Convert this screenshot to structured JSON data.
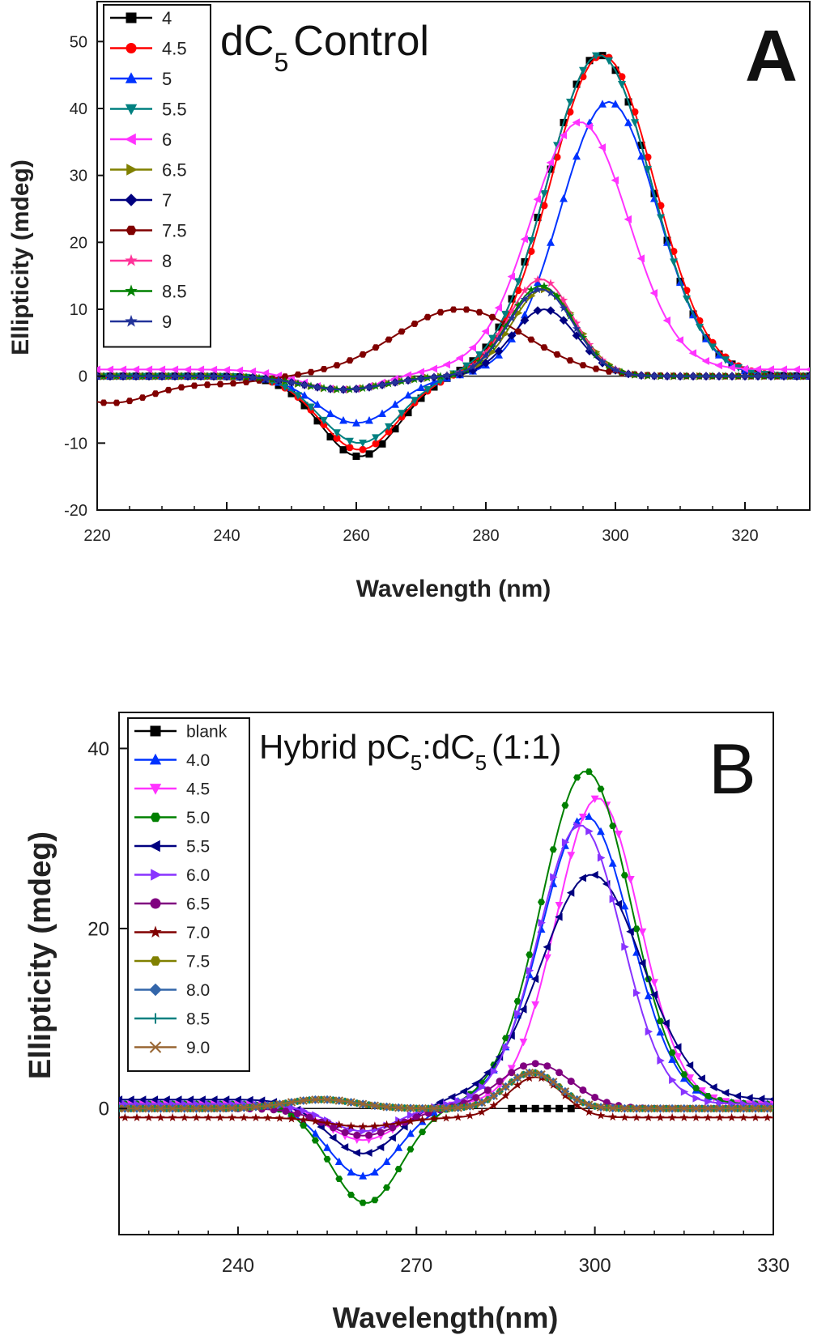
{
  "chart_data": [
    {
      "type": "line",
      "panel_label": "A",
      "title": "dC",
      "title_subscript": "5",
      "title_suffix": "Control",
      "xlabel": "Wavelength (nm)",
      "ylabel": "Ellipticity (mdeg)",
      "xlim": [
        220,
        330
      ],
      "ylim": [
        -20,
        55
      ],
      "x_ticks": [
        "220",
        "240",
        "260",
        "280",
        "300",
        "320"
      ],
      "x_tick_values": [
        220,
        240,
        260,
        280,
        300,
        320
      ],
      "y_ticks": [
        "-20",
        "-10",
        "0",
        "10",
        "20",
        "30",
        "40",
        "50"
      ],
      "y_tick_values": [
        -20,
        -10,
        0,
        10,
        20,
        30,
        40,
        50
      ],
      "legend_position": "top-left",
      "series": [
        {
          "name": "4",
          "color": "#000000",
          "marker": "square",
          "base": 0,
          "peaks": [
            [
              260.5,
              -12,
              6
            ],
            [
              297.5,
              48,
              8
            ]
          ]
        },
        {
          "name": "4.5",
          "color": "#ff0000",
          "marker": "circle",
          "base": 0,
          "peaks": [
            [
              260.5,
              -11,
              6
            ],
            [
              298,
              48,
              8
            ]
          ]
        },
        {
          "name": "5",
          "color": "#0033ff",
          "marker": "triangle-up",
          "base": 0,
          "peaks": [
            [
              260,
              -7,
              6
            ],
            [
              299,
              41,
              7.5
            ]
          ]
        },
        {
          "name": "5.5",
          "color": "#008080",
          "marker": "triangle-down",
          "base": 0,
          "peaks": [
            [
              260.5,
              -10,
              6
            ],
            [
              297.5,
              48,
              8
            ]
          ]
        },
        {
          "name": "6",
          "color": "#ff33ff",
          "marker": "triangle-left",
          "base": 1,
          "peaks": [
            [
              258,
              -3,
              6.5
            ],
            [
              294.5,
              37,
              7.5
            ]
          ]
        },
        {
          "name": "6.5",
          "color": "#808000",
          "marker": "triangle-right",
          "base": 0,
          "peaks": [
            [
              258,
              -2,
              6.5
            ],
            [
              289,
              13,
              5
            ]
          ]
        },
        {
          "name": "7",
          "color": "#000080",
          "marker": "diamond",
          "base": 0,
          "peaks": [
            [
              258,
              -2,
              6.5
            ],
            [
              289,
              10,
              5
            ]
          ]
        },
        {
          "name": "7.5",
          "color": "#800000",
          "marker": "hexagon",
          "base": 0,
          "peaks": [
            [
              276,
              10,
              10
            ],
            [
              222,
              -4,
              7
            ],
            [
              240,
              -1,
              6
            ]
          ]
        },
        {
          "name": "8",
          "color": "#ff3399",
          "marker": "star",
          "base": 0,
          "peaks": [
            [
              258,
              -2,
              6.5
            ],
            [
              288.5,
              14.5,
              5
            ]
          ]
        },
        {
          "name": "8.5",
          "color": "#008000",
          "marker": "star",
          "base": 0,
          "peaks": [
            [
              258,
              -2,
              6.5
            ],
            [
              288.5,
              13.5,
              5
            ]
          ]
        },
        {
          "name": "9",
          "color": "#223399",
          "marker": "star",
          "base": 0,
          "peaks": [
            [
              258,
              -2,
              6.5
            ],
            [
              288.5,
              13,
              5
            ]
          ]
        }
      ]
    },
    {
      "type": "line",
      "panel_label": "B",
      "title": "Hybrid pC",
      "title_sub1": "5",
      "title_mid": ":dC",
      "title_sub2": "5",
      "title_suffix": "(1:1)",
      "xlabel": "Wavelength(nm)",
      "ylabel": "Ellipticity (mdeg)",
      "xlim": [
        220,
        330
      ],
      "ylim": [
        -14,
        44
      ],
      "x_ticks": [
        "240",
        "270",
        "300",
        "330"
      ],
      "x_tick_values": [
        240,
        270,
        300,
        330
      ],
      "y_ticks": [
        "0",
        "20",
        "40"
      ],
      "y_tick_values": [
        0,
        20,
        40
      ],
      "legend_position": "top-left",
      "series": [
        {
          "name": "blank",
          "color": "#000000",
          "marker": "square",
          "base": 0,
          "peaks": []
        },
        {
          "name": "4.0",
          "color": "#0033ff",
          "marker": "triangle-up",
          "base": 0.5,
          "peaks": [
            [
              261,
              -8,
              6
            ],
            [
              298.5,
              32,
              7.5
            ]
          ]
        },
        {
          "name": "4.5",
          "color": "#ff33ff",
          "marker": "triangle-down",
          "base": 0.5,
          "peaks": [
            [
              261,
              -4,
              6
            ],
            [
              300.5,
              34,
              7
            ]
          ]
        },
        {
          "name": "5.0",
          "color": "#008000",
          "marker": "hexagon",
          "base": 0.5,
          "peaks": [
            [
              261.5,
              -11,
              6
            ],
            [
              298.5,
              37,
              7.5
            ]
          ]
        },
        {
          "name": "5.5",
          "color": "#000080",
          "marker": "triangle-left",
          "base": 1,
          "peaks": [
            [
              261,
              -6,
              6
            ],
            [
              299.5,
              25,
              8.5
            ]
          ]
        },
        {
          "name": "6.0",
          "color": "#8833ff",
          "marker": "triangle-right",
          "base": 0.5,
          "peaks": [
            [
              261,
              -3,
              6
            ],
            [
              297.5,
              31,
              7
            ]
          ]
        },
        {
          "name": "6.5",
          "color": "#800080",
          "marker": "circle",
          "base": 0,
          "peaks": [
            [
              261,
              -3,
              6
            ],
            [
              290,
              5,
              6
            ]
          ]
        },
        {
          "name": "7.0",
          "color": "#800000",
          "marker": "star",
          "base": -1,
          "peaks": [
            [
              261,
              -1,
              6
            ],
            [
              290,
              4.5,
              4.5
            ]
          ]
        },
        {
          "name": "7.5",
          "color": "#808000",
          "marker": "hexagon",
          "base": 0,
          "peaks": [
            [
              254,
              1,
              6
            ],
            [
              289.5,
              4,
              4.5
            ]
          ]
        },
        {
          "name": "8.0",
          "color": "#3366aa",
          "marker": "diamond",
          "base": 0,
          "peaks": [
            [
              254,
              1,
              6
            ],
            [
              289.5,
              4,
              4.5
            ]
          ]
        },
        {
          "name": "8.5",
          "color": "#008080",
          "marker": "plus",
          "base": 0,
          "peaks": [
            [
              254,
              1,
              6
            ],
            [
              289.5,
              4,
              4.5
            ]
          ]
        },
        {
          "name": "9.0",
          "color": "#996633",
          "marker": "cross",
          "base": 0,
          "peaks": [
            [
              254,
              1,
              6
            ],
            [
              289.5,
              4,
              4.5
            ]
          ]
        }
      ]
    }
  ]
}
